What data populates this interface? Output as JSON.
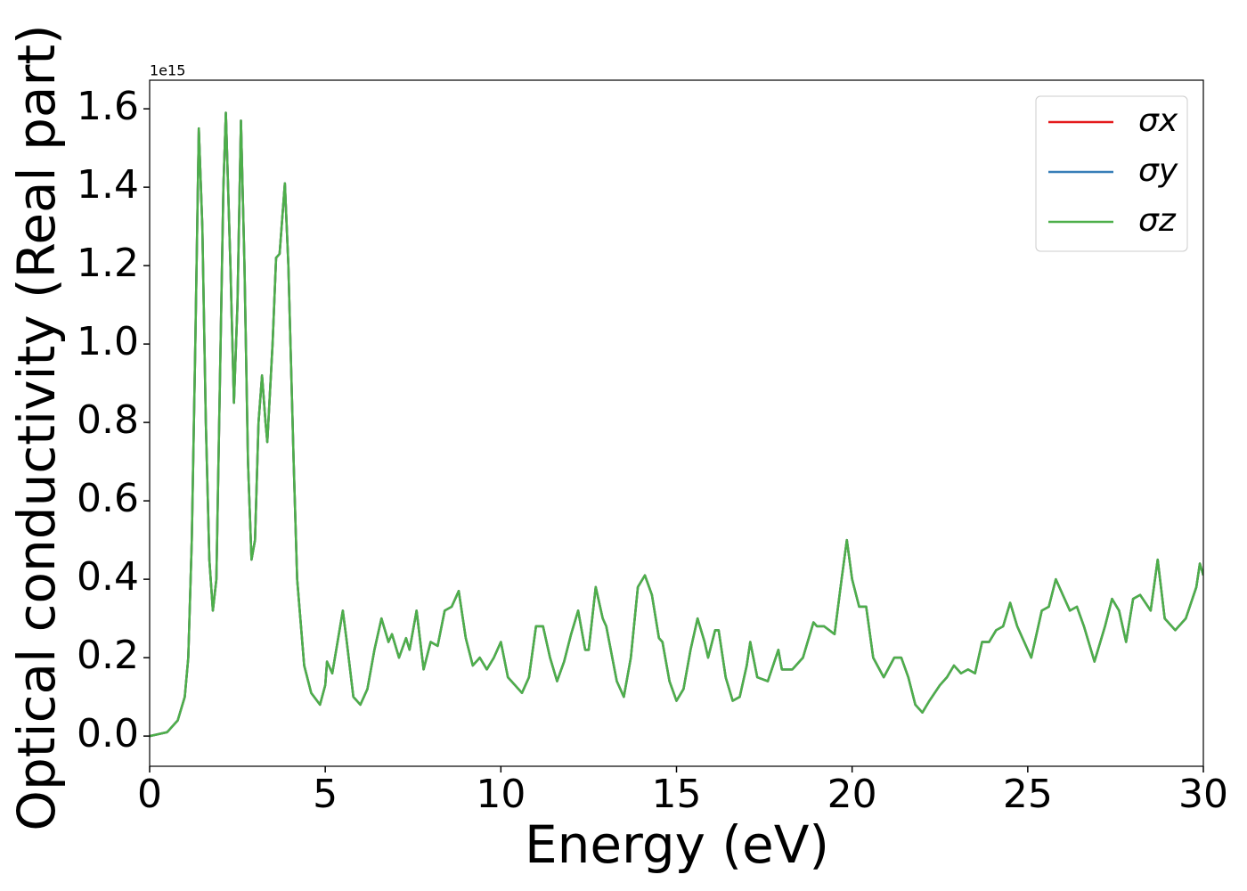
{
  "chart_data": {
    "type": "line",
    "xlabel": "Energy (eV)",
    "ylabel": "Optical conductivity (Real part)",
    "offset_label": "1e15",
    "xlim": [
      0,
      30
    ],
    "xticks": [
      0,
      5,
      10,
      15,
      20,
      25,
      30
    ],
    "ylim": [
      -0.077,
      1.673
    ],
    "yticks": [
      {
        "value": 0,
        "label": "0.0"
      },
      0.2,
      0.4,
      0.6,
      0.8,
      {
        "value": 1,
        "label": "1.0"
      },
      1.2,
      1.4,
      1.6
    ],
    "legend": "upper right",
    "x": [
      0,
      0.5,
      0.8,
      1.0,
      1.1,
      1.2,
      1.3,
      1.4,
      1.5,
      1.6,
      1.7,
      1.8,
      1.9,
      2.0,
      2.1,
      2.17,
      2.3,
      2.4,
      2.5,
      2.6,
      2.7,
      2.8,
      2.9,
      3.0,
      3.1,
      3.2,
      3.3,
      3.35,
      3.5,
      3.6,
      3.7,
      3.85,
      3.95,
      4.1,
      4.2,
      4.4,
      4.6,
      4.85,
      5.0,
      5.05,
      5.2,
      5.5,
      5.6,
      5.8,
      6.0,
      6.2,
      6.4,
      6.6,
      6.8,
      6.9,
      7.1,
      7.3,
      7.4,
      7.6,
      7.8,
      8.0,
      8.2,
      8.4,
      8.6,
      8.8,
      9.0,
      9.2,
      9.4,
      9.6,
      9.8,
      10.0,
      10.2,
      10.5,
      10.6,
      10.8,
      11.0,
      11.2,
      11.4,
      11.6,
      11.8,
      12.0,
      12.2,
      12.4,
      12.5,
      12.7,
      12.9,
      13.0,
      13.3,
      13.5,
      13.7,
      13.9,
      14.1,
      14.3,
      14.5,
      14.6,
      14.8,
      15.0,
      15.2,
      15.4,
      15.6,
      15.8,
      15.9,
      16.1,
      16.2,
      16.4,
      16.6,
      16.8,
      17.0,
      17.1,
      17.3,
      17.6,
      17.9,
      18.0,
      18.3,
      18.6,
      18.9,
      19.0,
      19.2,
      19.5,
      19.7,
      19.85,
      20.0,
      20.2,
      20.4,
      20.6,
      20.9,
      21.2,
      21.4,
      21.6,
      21.8,
      22.0,
      22.2,
      22.5,
      22.7,
      22.9,
      23.1,
      23.3,
      23.5,
      23.7,
      23.9,
      24.1,
      24.3,
      24.5,
      24.7,
      24.9,
      25.1,
      25.4,
      25.6,
      25.8,
      26.0,
      26.2,
      26.4,
      26.6,
      26.9,
      27.2,
      27.4,
      27.6,
      27.8,
      28.0,
      28.2,
      28.5,
      28.7,
      28.9,
      29.2,
      29.5,
      29.8,
      29.9,
      30.0
    ],
    "series": [
      {
        "name": "σx",
        "color": "#e41a1c",
        "values": [
          0,
          0.01,
          0.04,
          0.1,
          0.2,
          0.5,
          1.0,
          1.55,
          1.3,
          0.8,
          0.45,
          0.32,
          0.4,
          0.9,
          1.4,
          1.59,
          1.2,
          0.85,
          1.1,
          1.57,
          1.2,
          0.7,
          0.45,
          0.5,
          0.8,
          0.92,
          0.8,
          0.75,
          1.0,
          1.22,
          1.23,
          1.41,
          1.2,
          0.7,
          0.4,
          0.18,
          0.11,
          0.08,
          0.13,
          0.19,
          0.16,
          0.32,
          0.25,
          0.1,
          0.08,
          0.12,
          0.22,
          0.3,
          0.24,
          0.26,
          0.2,
          0.25,
          0.22,
          0.32,
          0.17,
          0.24,
          0.23,
          0.32,
          0.33,
          0.37,
          0.25,
          0.18,
          0.2,
          0.17,
          0.2,
          0.24,
          0.15,
          0.12,
          0.11,
          0.15,
          0.28,
          0.28,
          0.2,
          0.14,
          0.19,
          0.26,
          0.32,
          0.22,
          0.22,
          0.38,
          0.3,
          0.28,
          0.14,
          0.1,
          0.2,
          0.38,
          0.41,
          0.36,
          0.25,
          0.24,
          0.14,
          0.09,
          0.12,
          0.22,
          0.3,
          0.24,
          0.2,
          0.27,
          0.27,
          0.15,
          0.09,
          0.1,
          0.18,
          0.24,
          0.15,
          0.14,
          0.22,
          0.17,
          0.17,
          0.2,
          0.29,
          0.28,
          0.28,
          0.26,
          0.4,
          0.5,
          0.4,
          0.33,
          0.33,
          0.2,
          0.15,
          0.2,
          0.2,
          0.15,
          0.08,
          0.06,
          0.09,
          0.13,
          0.15,
          0.18,
          0.16,
          0.17,
          0.16,
          0.24,
          0.24,
          0.27,
          0.28,
          0.34,
          0.28,
          0.24,
          0.2,
          0.32,
          0.33,
          0.4,
          0.36,
          0.32,
          0.33,
          0.28,
          0.19,
          0.28,
          0.35,
          0.32,
          0.24,
          0.35,
          0.36,
          0.32,
          0.45,
          0.3,
          0.27,
          0.3,
          0.38,
          0.44,
          0.41
        ]
      },
      {
        "name": "σy",
        "color": "#377eb8",
        "values": [
          0,
          0.01,
          0.04,
          0.1,
          0.2,
          0.5,
          1.0,
          1.55,
          1.3,
          0.8,
          0.45,
          0.32,
          0.4,
          0.9,
          1.4,
          1.59,
          1.2,
          0.85,
          1.1,
          1.57,
          1.2,
          0.7,
          0.45,
          0.5,
          0.8,
          0.92,
          0.8,
          0.75,
          1.0,
          1.22,
          1.23,
          1.41,
          1.2,
          0.7,
          0.4,
          0.18,
          0.11,
          0.08,
          0.13,
          0.19,
          0.16,
          0.32,
          0.25,
          0.1,
          0.08,
          0.12,
          0.22,
          0.3,
          0.24,
          0.26,
          0.2,
          0.25,
          0.22,
          0.32,
          0.17,
          0.24,
          0.23,
          0.32,
          0.33,
          0.37,
          0.25,
          0.18,
          0.2,
          0.17,
          0.2,
          0.24,
          0.15,
          0.12,
          0.11,
          0.15,
          0.28,
          0.28,
          0.2,
          0.14,
          0.19,
          0.26,
          0.32,
          0.22,
          0.22,
          0.38,
          0.3,
          0.28,
          0.14,
          0.1,
          0.2,
          0.38,
          0.41,
          0.36,
          0.25,
          0.24,
          0.14,
          0.09,
          0.12,
          0.22,
          0.3,
          0.24,
          0.2,
          0.27,
          0.27,
          0.15,
          0.09,
          0.1,
          0.18,
          0.24,
          0.15,
          0.14,
          0.22,
          0.17,
          0.17,
          0.2,
          0.29,
          0.28,
          0.28,
          0.26,
          0.4,
          0.5,
          0.4,
          0.33,
          0.33,
          0.2,
          0.15,
          0.2,
          0.2,
          0.15,
          0.08,
          0.06,
          0.09,
          0.13,
          0.15,
          0.18,
          0.16,
          0.17,
          0.16,
          0.24,
          0.24,
          0.27,
          0.28,
          0.34,
          0.28,
          0.24,
          0.2,
          0.32,
          0.33,
          0.4,
          0.36,
          0.32,
          0.33,
          0.28,
          0.19,
          0.28,
          0.35,
          0.32,
          0.24,
          0.35,
          0.36,
          0.32,
          0.45,
          0.3,
          0.27,
          0.3,
          0.38,
          0.44,
          0.41
        ]
      },
      {
        "name": "σz",
        "color": "#4daf4a",
        "values": [
          0,
          0.01,
          0.04,
          0.1,
          0.2,
          0.5,
          1.0,
          1.55,
          1.3,
          0.8,
          0.45,
          0.32,
          0.4,
          0.9,
          1.4,
          1.59,
          1.2,
          0.85,
          1.1,
          1.57,
          1.2,
          0.7,
          0.45,
          0.5,
          0.8,
          0.92,
          0.8,
          0.75,
          1.0,
          1.22,
          1.23,
          1.41,
          1.2,
          0.7,
          0.4,
          0.18,
          0.11,
          0.08,
          0.13,
          0.19,
          0.16,
          0.32,
          0.25,
          0.1,
          0.08,
          0.12,
          0.22,
          0.3,
          0.24,
          0.26,
          0.2,
          0.25,
          0.22,
          0.32,
          0.17,
          0.24,
          0.23,
          0.32,
          0.33,
          0.37,
          0.25,
          0.18,
          0.2,
          0.17,
          0.2,
          0.24,
          0.15,
          0.12,
          0.11,
          0.15,
          0.28,
          0.28,
          0.2,
          0.14,
          0.19,
          0.26,
          0.32,
          0.22,
          0.22,
          0.38,
          0.3,
          0.28,
          0.14,
          0.1,
          0.2,
          0.38,
          0.41,
          0.36,
          0.25,
          0.24,
          0.14,
          0.09,
          0.12,
          0.22,
          0.3,
          0.24,
          0.2,
          0.27,
          0.27,
          0.15,
          0.09,
          0.1,
          0.18,
          0.24,
          0.15,
          0.14,
          0.22,
          0.17,
          0.17,
          0.2,
          0.29,
          0.28,
          0.28,
          0.26,
          0.4,
          0.5,
          0.4,
          0.33,
          0.33,
          0.2,
          0.15,
          0.2,
          0.2,
          0.15,
          0.08,
          0.06,
          0.09,
          0.13,
          0.15,
          0.18,
          0.16,
          0.17,
          0.16,
          0.24,
          0.24,
          0.27,
          0.28,
          0.34,
          0.28,
          0.24,
          0.2,
          0.32,
          0.33,
          0.4,
          0.36,
          0.32,
          0.33,
          0.28,
          0.19,
          0.28,
          0.35,
          0.32,
          0.24,
          0.35,
          0.36,
          0.32,
          0.45,
          0.3,
          0.27,
          0.3,
          0.38,
          0.44,
          0.41
        ]
      }
    ]
  }
}
